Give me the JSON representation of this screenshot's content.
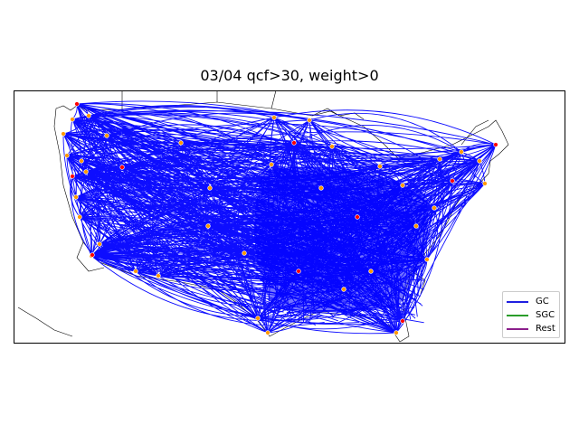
{
  "title": "03/04 qcf>30, weight>0",
  "legend": {
    "items": [
      {
        "label": "GC",
        "color": "#1f1fe0"
      },
      {
        "label": "SGC",
        "color": "#2a9d2a"
      },
      {
        "label": "Rest",
        "color": "#8b1f8b"
      }
    ]
  },
  "colors": {
    "route": "#0000ff",
    "station": "#ff9900",
    "station_alt": "#ff0000",
    "borders": "#000000"
  }
}
